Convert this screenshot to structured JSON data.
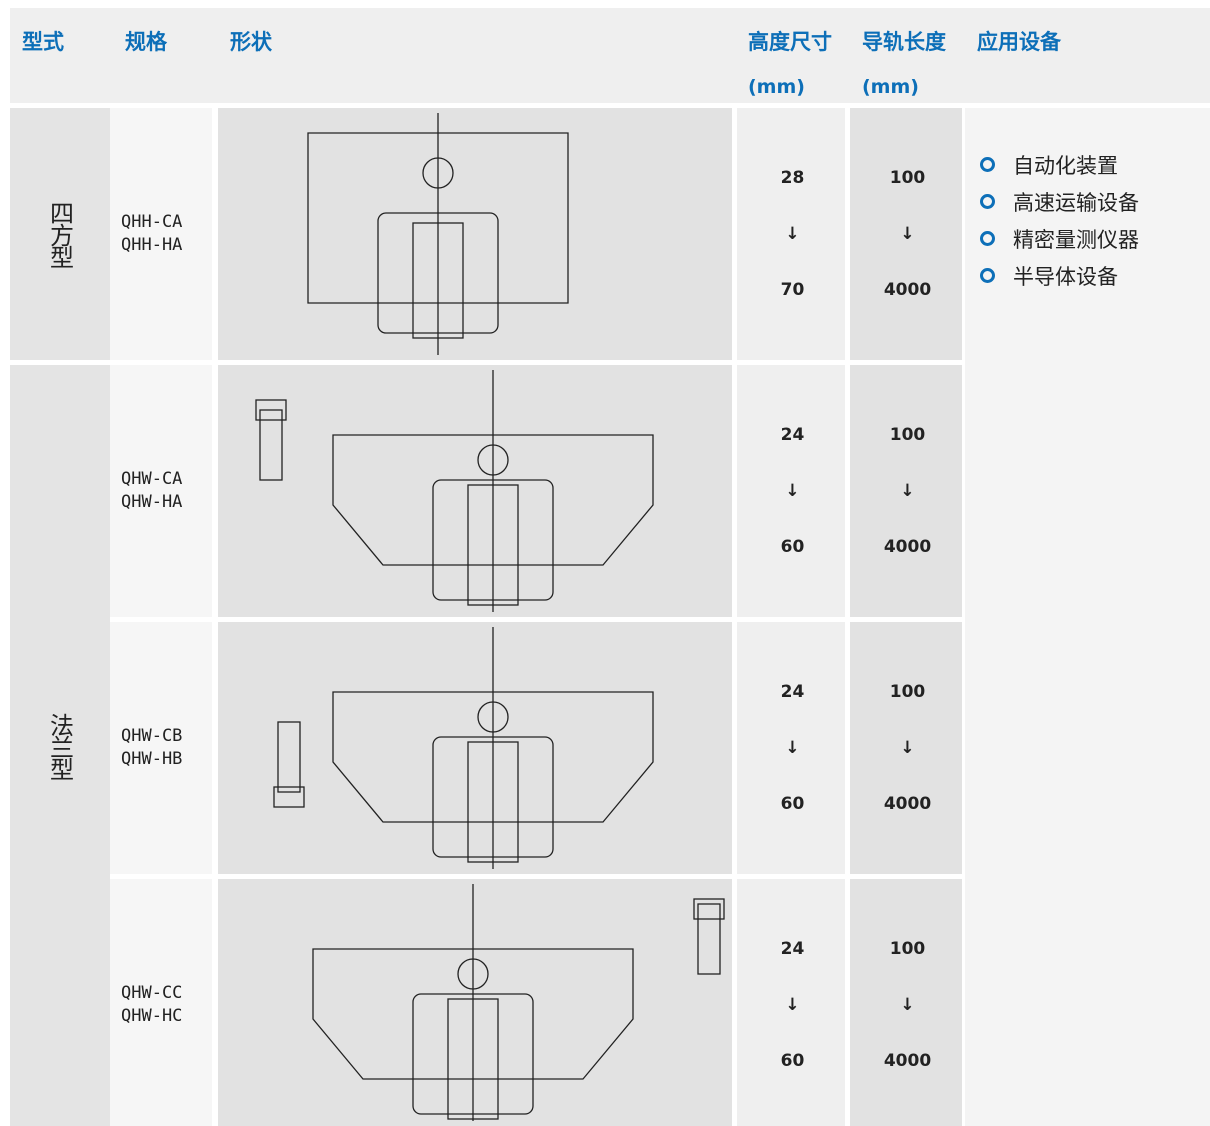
{
  "header": {
    "columns": [
      "型式",
      "规格",
      "形状",
      "高度尺寸",
      "导轨长度",
      "应用设备"
    ],
    "units": [
      "(mm)",
      "(mm)"
    ]
  },
  "groups": [
    {
      "type": "四方型",
      "rows": [
        {
          "models": [
            "QHH-CA",
            "QHH-HA"
          ],
          "height": [
            "28",
            "↓",
            "70"
          ],
          "length": [
            "100",
            "↓",
            "4000"
          ]
        }
      ]
    },
    {
      "type": "法兰型",
      "rows": [
        {
          "models": [
            "QHW-CA",
            "QHW-HA"
          ],
          "height": [
            "24",
            "↓",
            "60"
          ],
          "length": [
            "100",
            "↓",
            "4000"
          ]
        },
        {
          "models": [
            "QHW-CB",
            "QHW-HB"
          ],
          "height": [
            "24",
            "↓",
            "60"
          ],
          "length": [
            "100",
            "↓",
            "4000"
          ]
        },
        {
          "models": [
            "QHW-CC",
            "QHW-HC"
          ],
          "height": [
            "24",
            "↓",
            "60"
          ],
          "length": [
            "100",
            "↓",
            "4000"
          ]
        }
      ]
    }
  ],
  "applications": [
    "自动化装置",
    "高速运输设备",
    "精密量测仪器",
    "半导体设备"
  ]
}
